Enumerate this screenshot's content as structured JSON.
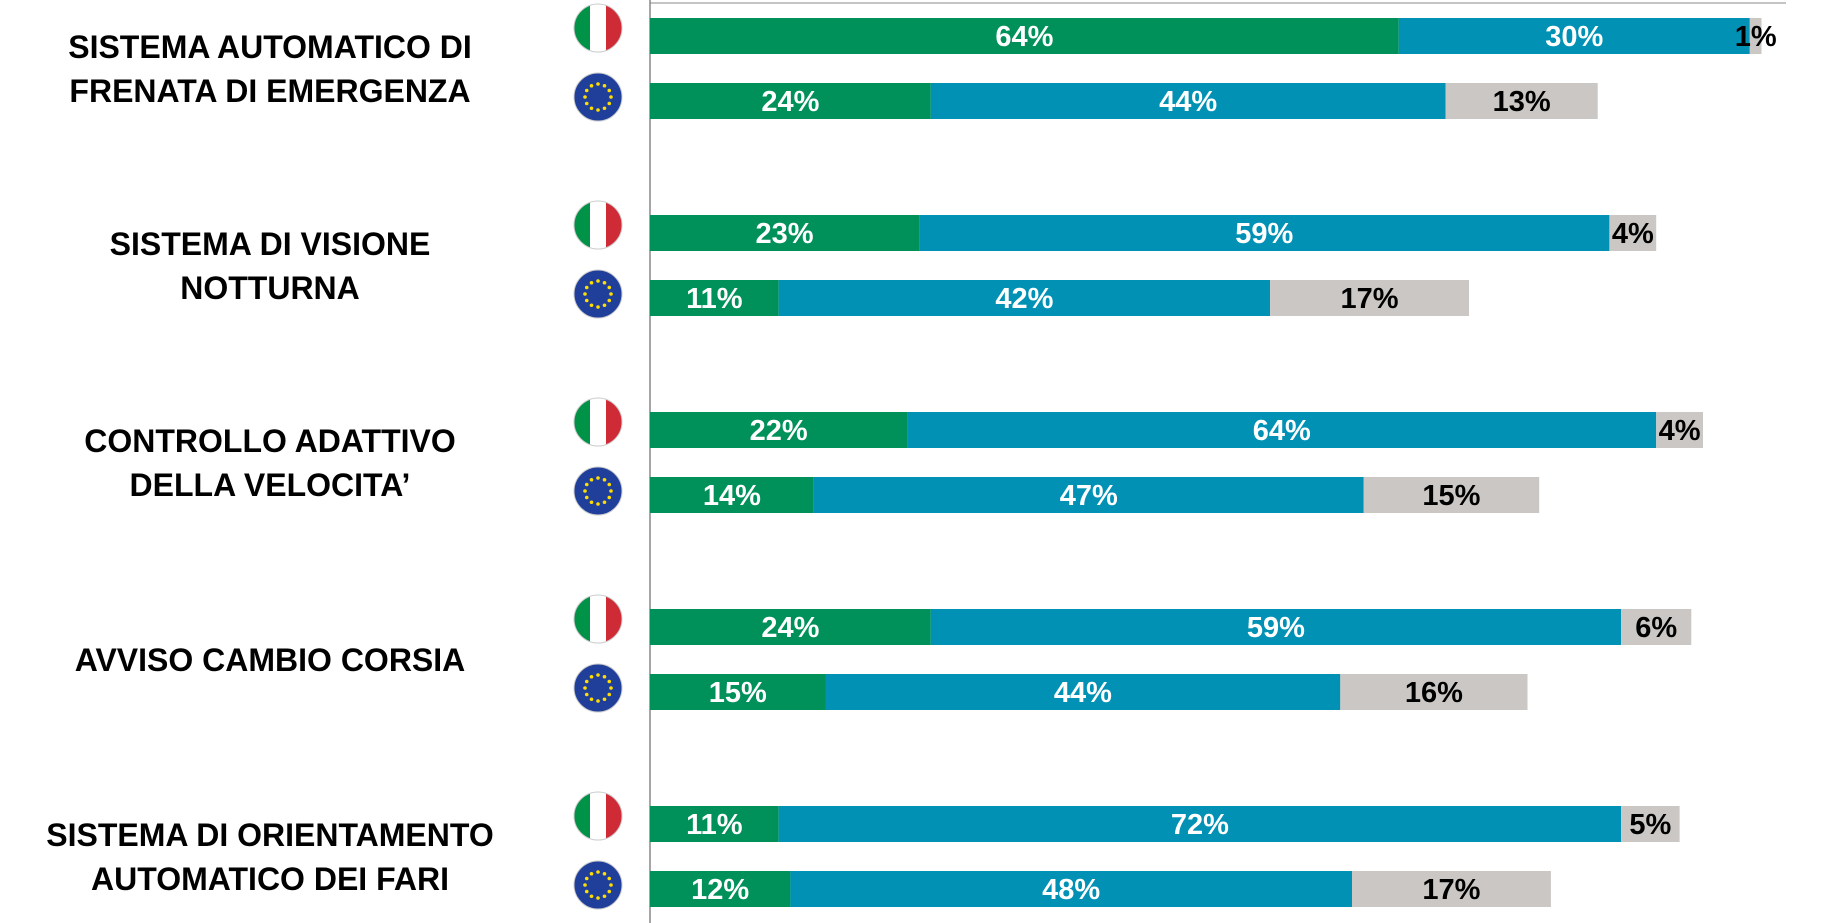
{
  "chart_data": {
    "type": "stacked_bar",
    "orientation": "horizontal",
    "categories": [
      "SISTEMA AUTOMATICO DI\nFRENATA DI EMERGENZA",
      "SISTEMA DI VISIONE\nNOTTURNA",
      "CONTROLLO ADATTIVO\nDELLA VELOCITA’",
      "AVVISO CAMBIO CORSIA",
      "SISTEMA DI ORIENTAMENTO\nAUTOMATICO DEI FARI"
    ],
    "xlim": [
      0,
      100
    ],
    "series": [
      {
        "color": "#00915a",
        "label_color": "#ffffff",
        "values": [
          [
            64,
            24
          ],
          [
            23,
            11
          ],
          [
            22,
            14
          ],
          [
            24,
            15
          ],
          [
            11,
            12
          ]
        ],
        "value_labels": [
          [
            "64%",
            "24%"
          ],
          [
            "23%",
            "11%"
          ],
          [
            "22%",
            "14%"
          ],
          [
            "24%",
            "15%"
          ],
          [
            "11%",
            "12%"
          ]
        ]
      },
      {
        "color": "#0091b5",
        "label_color": "#ffffff",
        "values": [
          [
            30,
            44
          ],
          [
            59,
            42
          ],
          [
            64,
            47
          ],
          [
            59,
            44
          ],
          [
            72,
            48
          ]
        ],
        "value_labels": [
          [
            "30%",
            "44%"
          ],
          [
            "59%",
            "42%"
          ],
          [
            "64%",
            "47%"
          ],
          [
            "59%",
            "44%"
          ],
          [
            "72%",
            "48%"
          ]
        ]
      },
      {
        "color": "#cac7c4",
        "label_color": "#000000",
        "values": [
          [
            1,
            13
          ],
          [
            4,
            17
          ],
          [
            4,
            15
          ],
          [
            6,
            16
          ],
          [
            5,
            17
          ]
        ],
        "value_labels": [
          [
            "1%",
            "13%"
          ],
          [
            "4%",
            "17%"
          ],
          [
            "4%",
            "15%"
          ],
          [
            "6%",
            "16%"
          ],
          [
            "5%",
            "17%"
          ]
        ]
      }
    ]
  }
}
